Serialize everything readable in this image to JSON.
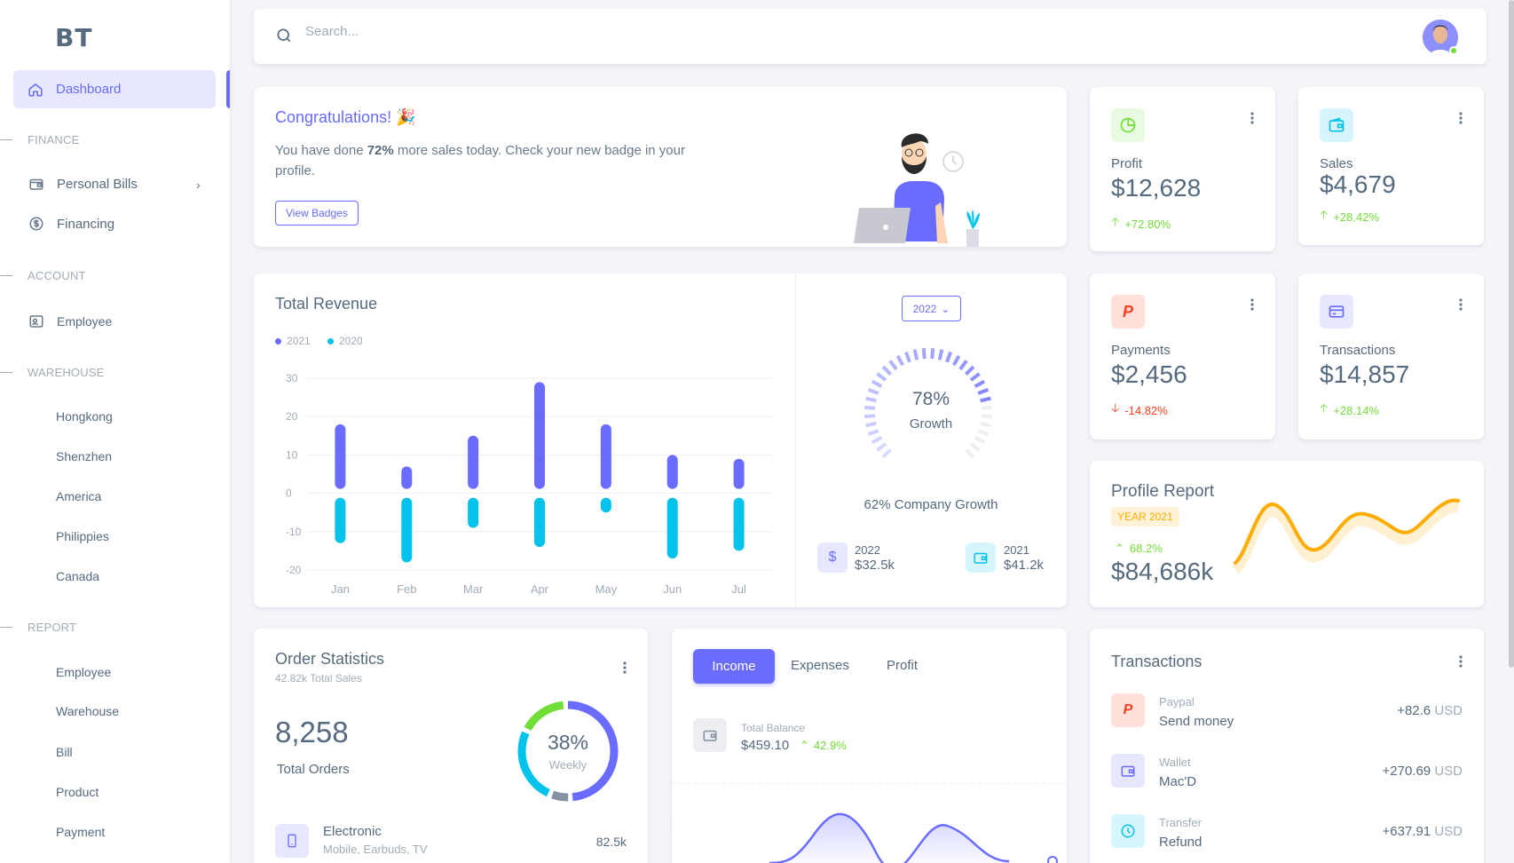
{
  "brand": {
    "logo": "BT"
  },
  "sidebar": {
    "active": "Dashboard",
    "sections": {
      "finance": "FINANCE",
      "account": "ACCOUNT",
      "warehouse": "WAREHOUSE",
      "report": "REPORT"
    },
    "finance_items": [
      "Personal Bills",
      "Financing"
    ],
    "account_items": [
      "Employee"
    ],
    "warehouse_items": [
      "Hongkong",
      "Shenzhen",
      "America",
      "Philippies",
      "Canada"
    ],
    "report_items": [
      "Employee",
      "Warehouse",
      "Bill",
      "Product",
      "Payment"
    ]
  },
  "search": {
    "placeholder": "Search..."
  },
  "congrats": {
    "title": "Congratulations! 🎉",
    "text_before": "You have done ",
    "text_bold": "72%",
    "text_after": " more sales today. Check your new badge in your profile.",
    "button": "View Badges"
  },
  "stats": {
    "profit": {
      "label": "Profit",
      "value": "$12,628",
      "delta": "+72.80%",
      "direction": "up"
    },
    "sales": {
      "label": "Sales",
      "value": "$4,679",
      "delta": "+28.42%",
      "direction": "up"
    },
    "payments": {
      "label": "Payments",
      "value": "$2,456",
      "delta": "-14.82%",
      "direction": "down"
    },
    "transactions": {
      "label": "Transactions",
      "value": "$14,857",
      "delta": "+28.14%",
      "direction": "up"
    }
  },
  "revenue": {
    "title": "Total Revenue",
    "chart_data": {
      "type": "bar",
      "categories": [
        "Jan",
        "Feb",
        "Mar",
        "Apr",
        "May",
        "Jun",
        "Jul"
      ],
      "series": [
        {
          "name": "2021",
          "values": [
            18,
            7,
            15,
            29,
            18,
            10,
            9
          ],
          "color": "#696cff"
        },
        {
          "name": "2020",
          "values": [
            -13,
            -18,
            -9,
            -14,
            -5,
            -17,
            -15
          ],
          "color": "#03c3ec"
        }
      ],
      "ylim": [
        -20,
        30
      ],
      "yticks": [
        30,
        20,
        10,
        0,
        -10,
        -20
      ]
    }
  },
  "growth": {
    "year_button": "2022",
    "percent": "78%",
    "label": "Growth",
    "value": 78,
    "company_growth": "62% Company Growth",
    "y2022": {
      "year": "2022",
      "value": "$32.5k"
    },
    "y2021": {
      "year": "2021",
      "value": "$41.2k"
    }
  },
  "profile_report": {
    "title": "Profile Report",
    "badge": "YEAR 2021",
    "delta": "68.2%",
    "value": "$84,686k",
    "color": "#ffab00"
  },
  "orders": {
    "title": "Order Statistics",
    "subtitle": "42.82k Total Sales",
    "total": "8,258",
    "total_label": "Total Orders",
    "donut_percent": "38%",
    "donut_label": "Weekly",
    "item": {
      "name": "Electronic",
      "sub": "Mobile, Earbuds, TV",
      "value": "82.5k"
    }
  },
  "income": {
    "tabs": [
      "Income",
      "Expenses",
      "Profit"
    ],
    "balance_label": "Total Balance",
    "balance_value": "$459.10",
    "balance_delta": "42.9%"
  },
  "transactions": {
    "title": "Transactions",
    "rows": [
      {
        "type": "Paypal",
        "name": "Send money",
        "amount": "+82.6",
        "currency": "USD"
      },
      {
        "type": "Wallet",
        "name": "Mac'D",
        "amount": "+270.69",
        "currency": "USD"
      },
      {
        "type": "Transfer",
        "name": "Refund",
        "amount": "+637.91",
        "currency": "USD"
      }
    ]
  },
  "colors": {
    "primary": "#696cff",
    "info": "#03c3ec",
    "success": "#71dd37",
    "danger": "#ff3e1d",
    "warning": "#ffab00"
  }
}
